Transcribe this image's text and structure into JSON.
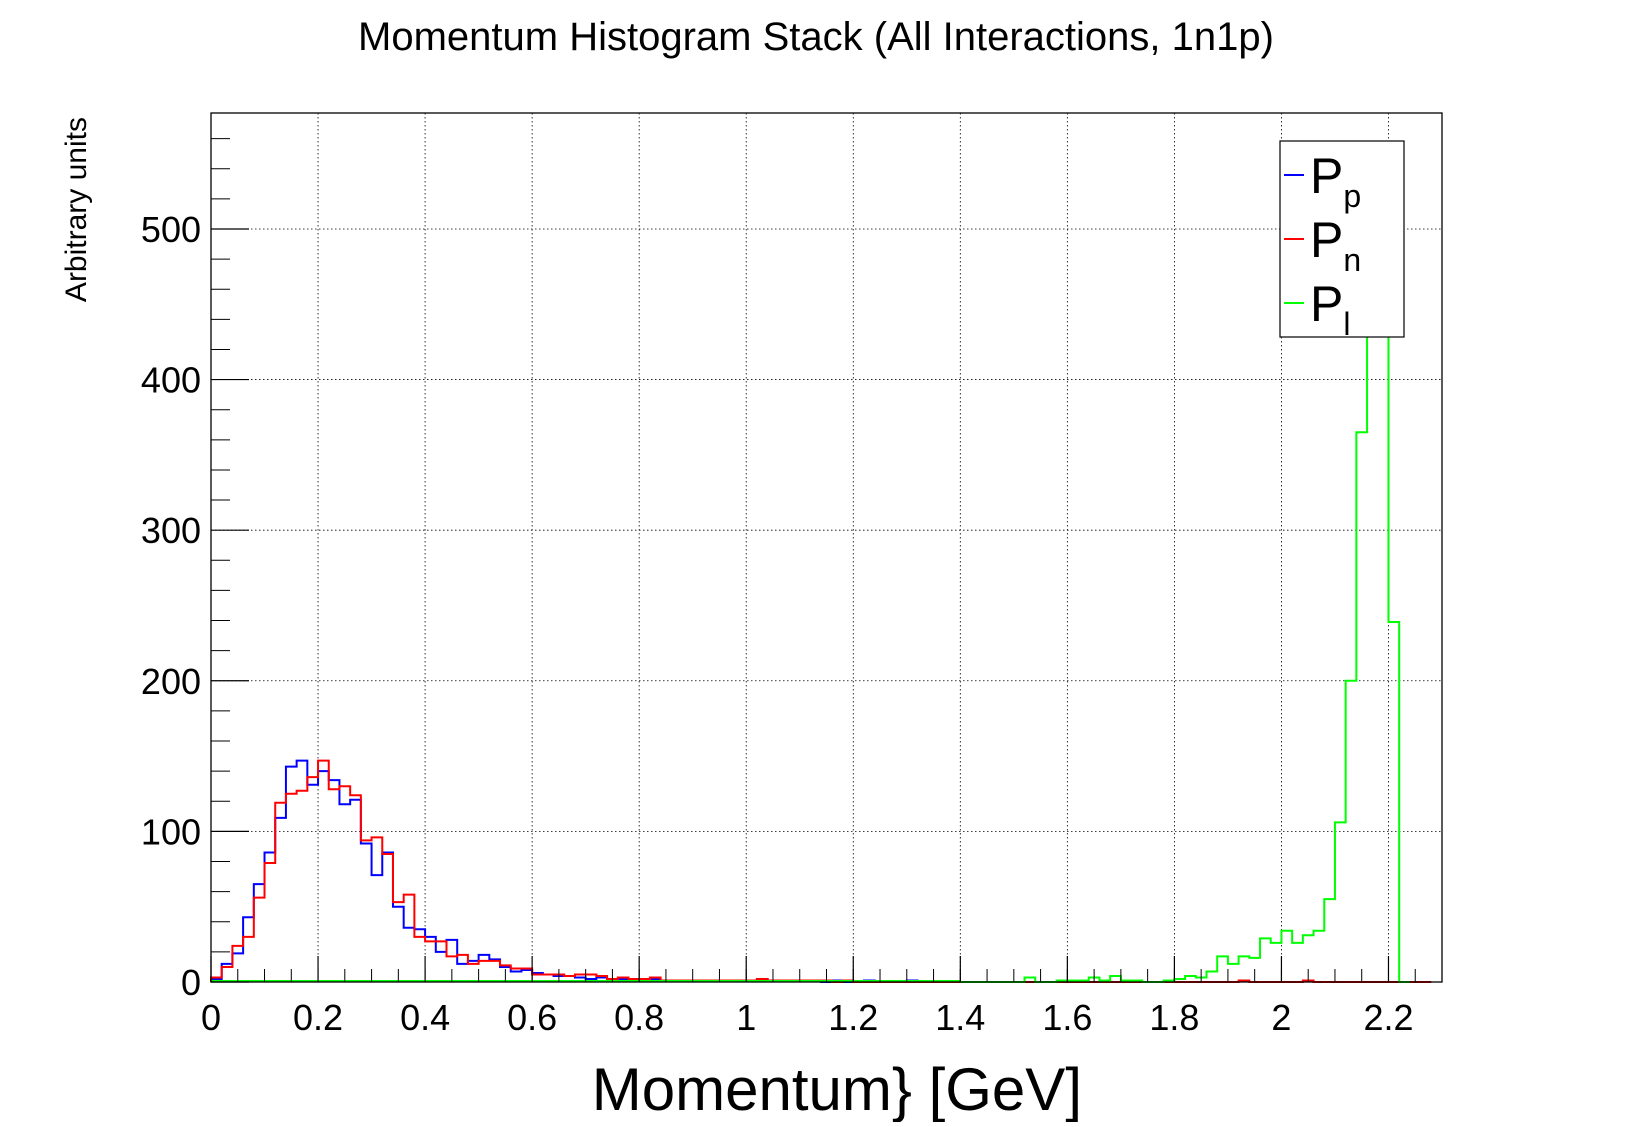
{
  "colors": {
    "frame": "#000000",
    "grid": "#000000",
    "series_proton": "#0000ff",
    "series_neutron": "#ff0000",
    "series_lepton": "#00ff00"
  },
  "chart_data": {
    "type": "histogram",
    "title": "Momentum Histogram Stack (All Interactions, 1n1p)",
    "xlabel": "Momentum} [GeV]",
    "ylabel": "Arbitrary units",
    "xlim": [
      0,
      2.3
    ],
    "ylim": [
      0,
      577
    ],
    "grid": true,
    "legend_position": "top-right",
    "x_ticks": [
      0,
      0.2,
      0.4,
      0.6,
      0.8,
      1,
      1.2,
      1.4,
      1.6,
      1.8,
      2,
      2.2
    ],
    "x_tick_labels": [
      "0",
      "0.2",
      "0.4",
      "0.6",
      "0.8",
      "1",
      "1.2",
      "1.4",
      "1.6",
      "1.8",
      "2",
      "2.2"
    ],
    "y_ticks": [
      0,
      100,
      200,
      300,
      400,
      500
    ],
    "y_tick_labels": [
      "0",
      "100",
      "200",
      "300",
      "400",
      "500"
    ],
    "bin_width": 0.02,
    "series": [
      {
        "name": "P",
        "subscript": "p",
        "color": "#0000ff",
        "start": 0,
        "values": [
          2,
          12,
          19,
          43,
          65,
          86,
          109,
          143,
          147,
          131,
          140,
          134,
          118,
          121,
          92,
          71,
          86,
          50,
          36,
          35,
          30,
          20,
          28,
          12,
          14,
          18,
          15,
          10,
          7,
          8,
          6,
          5,
          4,
          4,
          3,
          2,
          3,
          2,
          2,
          1,
          1,
          2,
          1,
          1,
          1,
          1,
          1,
          1,
          1,
          1,
          1,
          2,
          1,
          1,
          1,
          1,
          1,
          0,
          1,
          0,
          0,
          1,
          0,
          0,
          0,
          1
        ]
      },
      {
        "name": "P",
        "subscript": "n",
        "color": "#ff0000",
        "start": 0,
        "values": [
          3,
          10,
          24,
          30,
          56,
          79,
          119,
          125,
          127,
          136,
          147,
          128,
          130,
          124,
          94,
          96,
          85,
          53,
          58,
          30,
          27,
          27,
          17,
          18,
          12,
          14,
          14,
          11,
          9,
          9,
          5,
          5,
          5,
          4,
          5,
          5,
          4,
          2,
          3,
          2,
          2,
          3,
          1,
          1,
          1,
          1,
          1,
          1,
          1,
          1,
          1,
          2,
          1,
          1,
          1,
          1,
          1,
          1,
          0,
          1,
          0,
          0,
          0,
          0,
          0,
          0,
          0,
          0,
          0,
          0,
          0,
          0,
          0,
          0,
          0,
          0,
          0,
          0,
          0,
          0,
          0,
          0,
          0,
          0,
          0,
          0,
          0,
          0,
          0,
          0,
          0,
          0,
          0,
          0,
          0,
          0,
          1,
          0,
          0,
          0,
          0,
          0,
          1,
          0,
          0,
          0,
          0,
          0,
          0,
          0,
          0,
          0,
          0,
          0
        ]
      },
      {
        "name": "P",
        "subscript": "l",
        "color": "#00ff00",
        "start": 1.4,
        "values": [
          0,
          0,
          0,
          0,
          0,
          0,
          3,
          0,
          0,
          1,
          1,
          1,
          3,
          1,
          4,
          1,
          1,
          0,
          0,
          1,
          2,
          4,
          3,
          7,
          17,
          12,
          17,
          16,
          29,
          26,
          34,
          26,
          31,
          34,
          55,
          106,
          200,
          365,
          443,
          455,
          239,
          0
        ]
      }
    ]
  }
}
